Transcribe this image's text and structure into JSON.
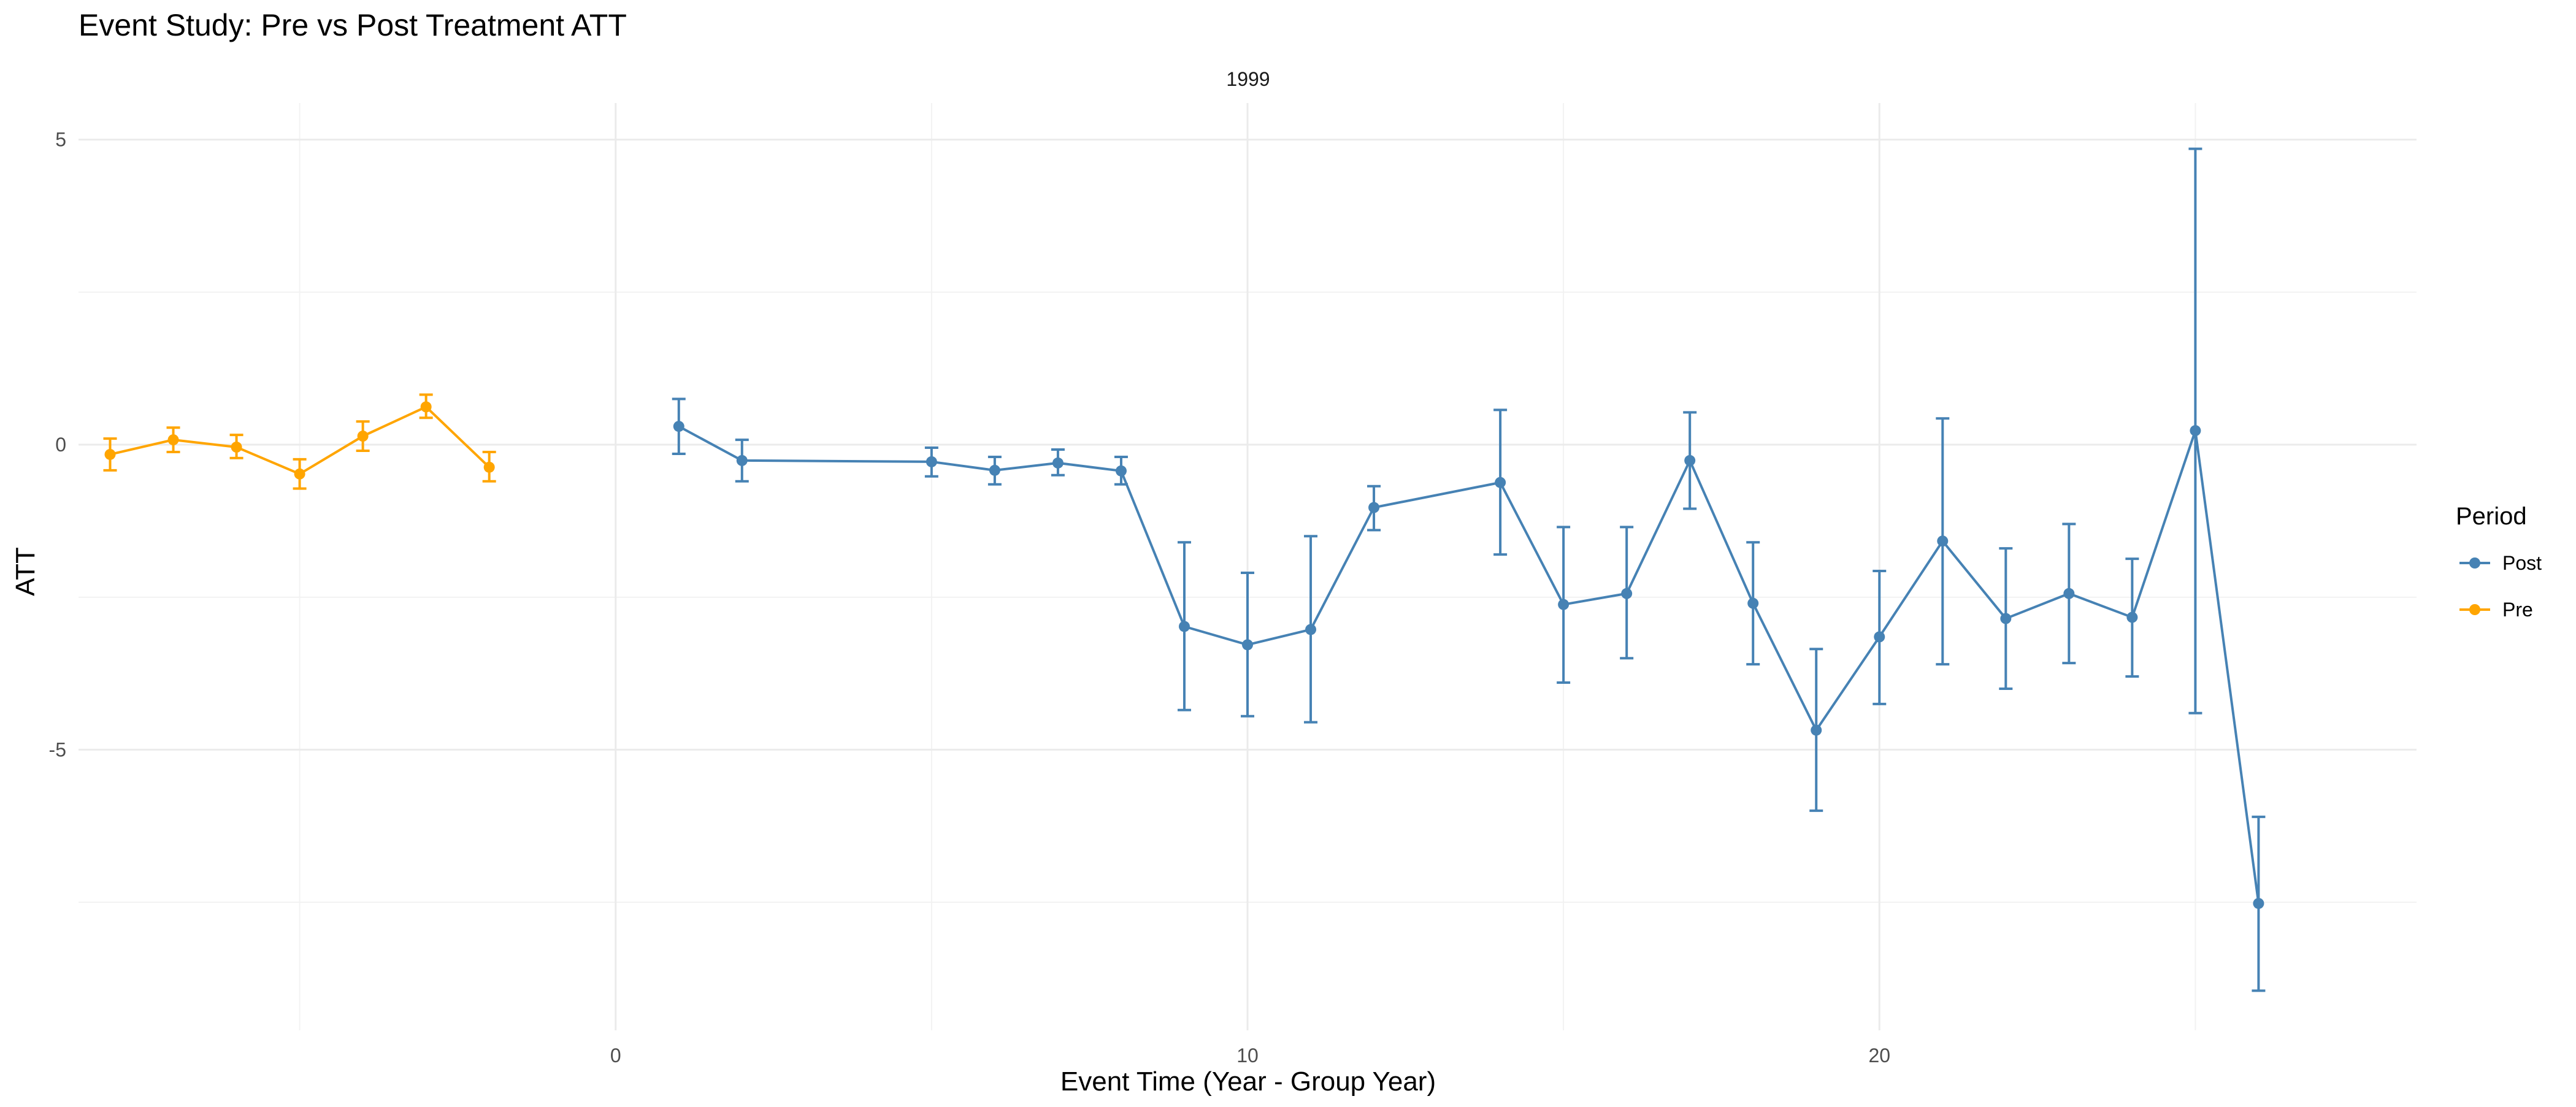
{
  "chart_data": {
    "type": "line",
    "title": "Event Study: Pre vs Post Treatment ATT",
    "facet_label": "1999",
    "xlabel": "Event Time (Year - Group Year)",
    "ylabel": "ATT",
    "xlim": [
      -8.5,
      28.5
    ],
    "ylim": [
      -9.6,
      5.6
    ],
    "x_ticks": [
      0,
      10,
      20
    ],
    "x_tick_labels": [
      "0",
      "10",
      "20"
    ],
    "y_ticks": [
      5,
      0,
      -5
    ],
    "y_tick_labels": [
      "5",
      "0",
      "-5"
    ],
    "grid": true,
    "legend": {
      "title": "Period",
      "position": "right",
      "entries": [
        "Post",
        "Pre"
      ]
    },
    "series": [
      {
        "name": "Post",
        "color": "#4682B4",
        "points": [
          {
            "x": 1,
            "y": 0.3,
            "lo": -0.15,
            "hi": 0.75
          },
          {
            "x": 2,
            "y": -0.26,
            "lo": -0.6,
            "hi": 0.08
          },
          {
            "x": 5,
            "y": -0.28,
            "lo": -0.52,
            "hi": -0.05
          },
          {
            "x": 6,
            "y": -0.42,
            "lo": -0.65,
            "hi": -0.2
          },
          {
            "x": 7,
            "y": -0.3,
            "lo": -0.5,
            "hi": -0.08
          },
          {
            "x": 8,
            "y": -0.43,
            "lo": -0.65,
            "hi": -0.2
          },
          {
            "x": 9,
            "y": -2.98,
            "lo": -4.35,
            "hi": -1.6
          },
          {
            "x": 10,
            "y": -3.28,
            "lo": -4.45,
            "hi": -2.1
          },
          {
            "x": 11,
            "y": -3.03,
            "lo": -4.55,
            "hi": -1.5
          },
          {
            "x": 12,
            "y": -1.03,
            "lo": -1.4,
            "hi": -0.68
          },
          {
            "x": 14,
            "y": -0.62,
            "lo": -1.8,
            "hi": 0.57
          },
          {
            "x": 15,
            "y": -2.62,
            "lo": -3.9,
            "hi": -1.35
          },
          {
            "x": 16,
            "y": -2.44,
            "lo": -3.5,
            "hi": -1.35
          },
          {
            "x": 17,
            "y": -0.26,
            "lo": -1.05,
            "hi": 0.53
          },
          {
            "x": 18,
            "y": -2.6,
            "lo": -3.6,
            "hi": -1.6
          },
          {
            "x": 19,
            "y": -4.68,
            "lo": -6.0,
            "hi": -3.35
          },
          {
            "x": 20,
            "y": -3.15,
            "lo": -4.25,
            "hi": -2.07
          },
          {
            "x": 21,
            "y": -1.58,
            "lo": -3.6,
            "hi": 0.43
          },
          {
            "x": 22,
            "y": -2.85,
            "lo": -4.0,
            "hi": -1.7
          },
          {
            "x": 23,
            "y": -2.44,
            "lo": -3.58,
            "hi": -1.3
          },
          {
            "x": 24,
            "y": -2.83,
            "lo": -3.8,
            "hi": -1.87
          },
          {
            "x": 25,
            "y": 0.23,
            "lo": -4.4,
            "hi": 4.85
          },
          {
            "x": 26,
            "y": -7.52,
            "lo": -8.95,
            "hi": -6.1
          }
        ]
      },
      {
        "name": "Pre",
        "color": "#FFA500",
        "points": [
          {
            "x": -8,
            "y": -0.16,
            "lo": -0.42,
            "hi": 0.1
          },
          {
            "x": -7,
            "y": 0.08,
            "lo": -0.12,
            "hi": 0.28
          },
          {
            "x": -6,
            "y": -0.04,
            "lo": -0.22,
            "hi": 0.16
          },
          {
            "x": -5,
            "y": -0.48,
            "lo": -0.72,
            "hi": -0.24
          },
          {
            "x": -4,
            "y": 0.14,
            "lo": -0.1,
            "hi": 0.38
          },
          {
            "x": -3,
            "y": 0.62,
            "lo": 0.44,
            "hi": 0.82
          },
          {
            "x": -2,
            "y": -0.37,
            "lo": -0.6,
            "hi": -0.12
          }
        ]
      }
    ]
  }
}
